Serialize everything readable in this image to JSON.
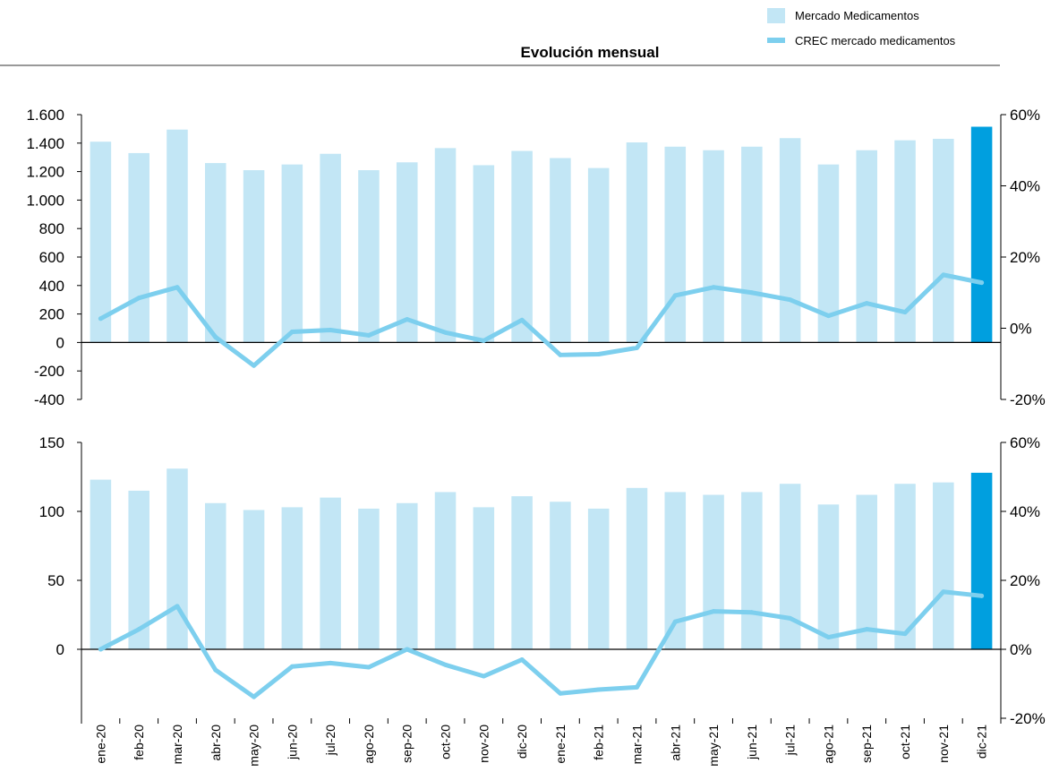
{
  "title": "Evolución mensual",
  "legend": {
    "items": [
      {
        "label": "Mercado Medicamentos",
        "color": "#c2e6f5",
        "kind": "bar"
      },
      {
        "label": "CREC mercado medicamentos",
        "color": "#7dcfee",
        "kind": "line"
      }
    ]
  },
  "colors": {
    "bar": "#c2e6f5",
    "bar_highlight": "#009fdf",
    "line": "#7dcfee",
    "axis": "#000000",
    "text": "#000000"
  },
  "chart_data": [
    {
      "type": "bar",
      "categories": [
        "ene-20",
        "feb-20",
        "mar-20",
        "abr-20",
        "may-20",
        "jun-20",
        "jul-20",
        "ago-20",
        "sep-20",
        "oct-20",
        "nov-20",
        "dic-20",
        "ene-21",
        "feb-21",
        "mar-21",
        "abr-21",
        "may-21",
        "jun-21",
        "jul-21",
        "ago-21",
        "sep-21",
        "oct-21",
        "nov-21",
        "dic-21"
      ],
      "series": [
        {
          "name": "Mercado Medicamentos",
          "axis": "left",
          "type": "bar",
          "values": [
            1410,
            1330,
            1495,
            1260,
            1210,
            1250,
            1325,
            1210,
            1265,
            1365,
            1245,
            1345,
            1295,
            1225,
            1405,
            1375,
            1350,
            1375,
            1435,
            1250,
            1350,
            1420,
            1430,
            1515
          ],
          "highlight_index": 23
        },
        {
          "name": "CREC mercado medicamentos",
          "axis": "right",
          "type": "line",
          "values": [
            0.027,
            0.085,
            0.115,
            -0.025,
            -0.105,
            -0.01,
            -0.005,
            -0.02,
            0.025,
            -0.012,
            -0.035,
            0.023,
            -0.075,
            -0.073,
            -0.055,
            0.092,
            0.115,
            0.1,
            0.08,
            0.035,
            0.07,
            0.045,
            0.15,
            0.128
          ]
        }
      ],
      "y_left": {
        "ylim": [
          -400,
          1600
        ],
        "ticks": [
          -400,
          -200,
          0,
          200,
          400,
          600,
          800,
          1000,
          1200,
          1400,
          1600
        ],
        "tick_labels": [
          "-400",
          "-200",
          "0",
          "200",
          "400",
          "600",
          "800",
          "1.000",
          "1.200",
          "1.400",
          "1.600"
        ]
      },
      "y_right": {
        "ylim": [
          -0.2,
          0.6
        ],
        "ticks": [
          -0.2,
          0,
          0.2,
          0.4,
          0.6
        ],
        "tick_labels": [
          "-20%",
          "0%",
          "20%",
          "40%",
          "60%"
        ]
      },
      "grid": false
    },
    {
      "type": "bar",
      "categories": [
        "ene-20",
        "feb-20",
        "mar-20",
        "abr-20",
        "may-20",
        "jun-20",
        "jul-20",
        "ago-20",
        "sep-20",
        "oct-20",
        "nov-20",
        "dic-20",
        "ene-21",
        "feb-21",
        "mar-21",
        "abr-21",
        "may-21",
        "jun-21",
        "jul-21",
        "ago-21",
        "sep-21",
        "oct-21",
        "nov-21",
        "dic-21"
      ],
      "series": [
        {
          "name": "Mercado Medicamentos",
          "axis": "left",
          "type": "bar",
          "values": [
            123,
            115,
            131,
            106,
            101,
            103,
            110,
            102,
            106,
            114,
            103,
            111,
            107,
            102,
            117,
            114,
            112,
            114,
            120,
            105,
            112,
            120,
            121,
            128
          ],
          "highlight_index": 23
        },
        {
          "name": "CREC mercado medicamentos",
          "axis": "right",
          "type": "line",
          "values": [
            0.0,
            0.058,
            0.125,
            -0.06,
            -0.138,
            -0.05,
            -0.04,
            -0.052,
            0.0,
            -0.045,
            -0.078,
            -0.03,
            -0.128,
            -0.117,
            -0.11,
            0.08,
            0.11,
            0.107,
            0.09,
            0.035,
            0.058,
            0.045,
            0.167,
            0.155
          ]
        }
      ],
      "y_left": {
        "ylim": [
          -50,
          150
        ],
        "ticks": [
          0,
          50,
          100,
          150
        ],
        "tick_labels": [
          "0",
          "50",
          "100",
          "150"
        ]
      },
      "y_right": {
        "ylim": [
          -0.2,
          0.6
        ],
        "ticks": [
          -0.2,
          0,
          0.2,
          0.4,
          0.6
        ],
        "tick_labels": [
          "-20%",
          "0%",
          "20%",
          "40%",
          "60%"
        ]
      },
      "grid": false
    }
  ]
}
